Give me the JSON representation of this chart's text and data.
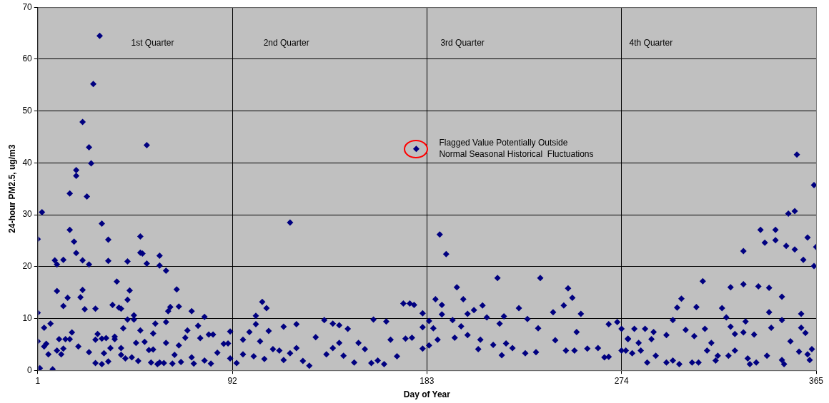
{
  "chart_data": {
    "type": "scatter",
    "xlabel": "Day of Year",
    "ylabel": "24-hour PM2.5, ug/m3",
    "xlim": [
      1,
      365
    ],
    "xticks": [
      1,
      92,
      183,
      274,
      365
    ],
    "ylim": [
      0,
      70
    ],
    "yticks": [
      0,
      10,
      20,
      30,
      40,
      50,
      60,
      70
    ],
    "grid": true,
    "legend": false,
    "marker": "diamond",
    "annotations": [
      "1st Quarter",
      "2nd Quarter",
      "3rd Quarter",
      "4th Quarter",
      {
        "text": "Flagged Value Potentially Outside\nNormal Seasonal Historical  Fluctuations",
        "x": 178,
        "y": 42.7
      }
    ],
    "series": [
      {
        "color": "#000080",
        "x": [
          1,
          3,
          1,
          1,
          2,
          4,
          7,
          4,
          5,
          6,
          8,
          9,
          10,
          10,
          10,
          11,
          12,
          13,
          13,
          13,
          14,
          15,
          16,
          16,
          16,
          17,
          18,
          19,
          19,
          19,
          20,
          21,
          22,
          22,
          22,
          23,
          24,
          25,
          25,
          25,
          26,
          27,
          28,
          28,
          28,
          29,
          30,
          31,
          31,
          31,
          32,
          33,
          34,
          34,
          34,
          35,
          36,
          37,
          37,
          38,
          39,
          40,
          40,
          40,
          41,
          42,
          43,
          43,
          43,
          44,
          45,
          46,
          46,
          47,
          48,
          49,
          49,
          49,
          50,
          51,
          52,
          52,
          53,
          54,
          55,
          55,
          56,
          57,
          58,
          58,
          58,
          60,
          61,
          61,
          61,
          62,
          63,
          64,
          65,
          66,
          67,
          67,
          68,
          70,
          71,
          73,
          73,
          74,
          76,
          77,
          79,
          79,
          81,
          82,
          83,
          85,
          88,
          90,
          91,
          91
        ],
        "values": [
          25.3,
          30.5,
          11.1,
          5.6,
          0.4,
          8.2,
          9.0,
          4.6,
          5.1,
          3.1,
          0.2,
          21.2,
          20.4,
          15.3,
          3.8,
          6.0,
          3.1,
          21.3,
          12.4,
          4.2,
          6.0,
          14.0,
          34.1,
          27.1,
          6.0,
          7.3,
          24.8,
          38.6,
          37.5,
          22.6,
          4.6,
          14.1,
          47.9,
          21.2,
          15.5,
          11.8,
          33.5,
          20.4,
          3.5,
          43.0,
          39.9,
          55.2,
          11.9,
          5.9,
          1.4,
          7.0,
          64.5,
          28.3,
          6.1,
          1.2,
          3.3,
          6.2,
          25.2,
          21.1,
          1.7,
          4.3,
          12.6,
          6.5,
          6.0,
          17.1,
          12.1,
          11.9,
          4.3,
          3.0,
          8.1,
          2.3,
          21.0,
          13.6,
          9.8,
          15.4,
          2.5,
          10.6,
          9.8,
          5.3,
          1.8,
          25.8,
          7.7,
          22.7,
          22.5,
          5.5,
          43.4,
          20.6,
          3.9,
          1.5,
          4.0,
          7.1,
          9.0,
          1.2,
          22.1,
          20.2,
          1.5,
          1.4,
          19.2,
          9.3,
          5.3,
          11.4,
          12.2,
          1.3,
          3.0,
          15.6,
          12.3,
          4.8,
          1.6,
          6.3,
          7.7,
          11.4,
          2.5,
          1.3,
          8.6,
          6.2,
          10.3,
          1.9,
          6.9,
          1.3,
          6.9,
          3.4,
          5.1,
          5.2,
          7.5,
          2.3
        ]
      },
      {
        "color": "#000080",
        "x": [
          106,
          108,
          103,
          103,
          119,
          116,
          122,
          135,
          139,
          142,
          146,
          158,
          164,
          172,
          175,
          177,
          178,
          181,
          181,
          94,
          97,
          100,
          102,
          105,
          107,
          109,
          111,
          114,
          116,
          119,
          122,
          125,
          128,
          131,
          136,
          139,
          142,
          144,
          149,
          151,
          154,
          157,
          160,
          163,
          166,
          169,
          173,
          176,
          181,
          97
        ],
        "values": [
          13.2,
          12.0,
          10.5,
          8.9,
          28.5,
          8.4,
          8.9,
          9.7,
          9.0,
          8.7,
          8.0,
          9.8,
          9.4,
          12.9,
          12.9,
          12.6,
          42.7,
          11.0,
          4.2,
          1.4,
          5.9,
          7.4,
          2.7,
          5.6,
          2.2,
          7.6,
          4.1,
          3.8,
          2.0,
          3.3,
          4.3,
          1.8,
          0.9,
          6.4,
          3.1,
          4.3,
          5.3,
          2.8,
          1.5,
          5.3,
          4.1,
          1.4,
          1.9,
          1.2,
          5.9,
          2.7,
          6.1,
          6.3,
          8.3,
          3.1
        ]
      },
      {
        "color": "#000080",
        "x": [
          189,
          192,
          216,
          236,
          197,
          249,
          251,
          187,
          200,
          190,
          209,
          226,
          247,
          190,
          202,
          205,
          242,
          255,
          184,
          195,
          211,
          219,
          230,
          186,
          199,
          217,
          235,
          253,
          268,
          272,
          184,
          188,
          196,
          202,
          208,
          214,
          220,
          223,
          229,
          234,
          243,
          248,
          252,
          258,
          263,
          266,
          268,
          207,
          218,
          274,
          277
        ],
        "values": [
          26.2,
          22.4,
          17.8,
          17.8,
          16.0,
          15.8,
          14.0,
          13.7,
          13.7,
          12.6,
          12.5,
          12.0,
          12.5,
          10.8,
          10.9,
          11.6,
          11.2,
          10.9,
          9.5,
          9.7,
          10.2,
          10.4,
          9.9,
          8.1,
          8.5,
          9.0,
          8.1,
          7.4,
          8.9,
          9.3,
          4.8,
          5.9,
          6.3,
          6.8,
          5.9,
          4.9,
          5.2,
          4.3,
          3.3,
          3.5,
          5.8,
          3.8,
          3.8,
          4.2,
          4.3,
          2.5,
          2.6,
          4.1,
          2.9,
          3.8,
          6.1
        ]
      },
      {
        "color": "#000080",
        "x": [
          356,
          364,
          355,
          352,
          339,
          346,
          341,
          346,
          361,
          351,
          355,
          331,
          365,
          359,
          364,
          312,
          325,
          331,
          338,
          343,
          349,
          302,
          300,
          309,
          321,
          343,
          358,
          298,
          323,
          332,
          349,
          274,
          280,
          285,
          289,
          313,
          325,
          344,
          358,
          360,
          277,
          282,
          288,
          295,
          304,
          308,
          316,
          327,
          331,
          336,
          353,
          276,
          279,
          283,
          286,
          290,
          295,
          298,
          301,
          307,
          310,
          314,
          318,
          319,
          324,
          327,
          333,
          334,
          337,
          342,
          349,
          350,
          357,
          361,
          362,
          363
        ],
        "values": [
          41.6,
          35.7,
          30.7,
          30.2,
          27.1,
          27.1,
          24.6,
          25.1,
          25.6,
          24.0,
          23.3,
          23.0,
          23.8,
          21.3,
          20.1,
          17.2,
          16.0,
          16.6,
          16.2,
          15.9,
          14.2,
          13.8,
          12.1,
          12.2,
          12.0,
          11.2,
          10.9,
          9.7,
          10.2,
          9.4,
          9.7,
          8.0,
          8.0,
          8.0,
          7.4,
          8.0,
          8.4,
          8.2,
          8.2,
          7.2,
          6.0,
          5.3,
          6.0,
          6.8,
          7.8,
          6.6,
          5.3,
          7.0,
          7.3,
          6.9,
          5.6,
          3.8,
          3.3,
          3.8,
          1.5,
          2.8,
          1.5,
          1.9,
          1.2,
          1.5,
          1.5,
          3.8,
          1.9,
          2.8,
          2.8,
          3.8,
          2.3,
          1.2,
          1.5,
          2.8,
          2.0,
          1.2,
          3.6,
          3.1,
          2.0,
          4.1
        ]
      }
    ]
  }
}
